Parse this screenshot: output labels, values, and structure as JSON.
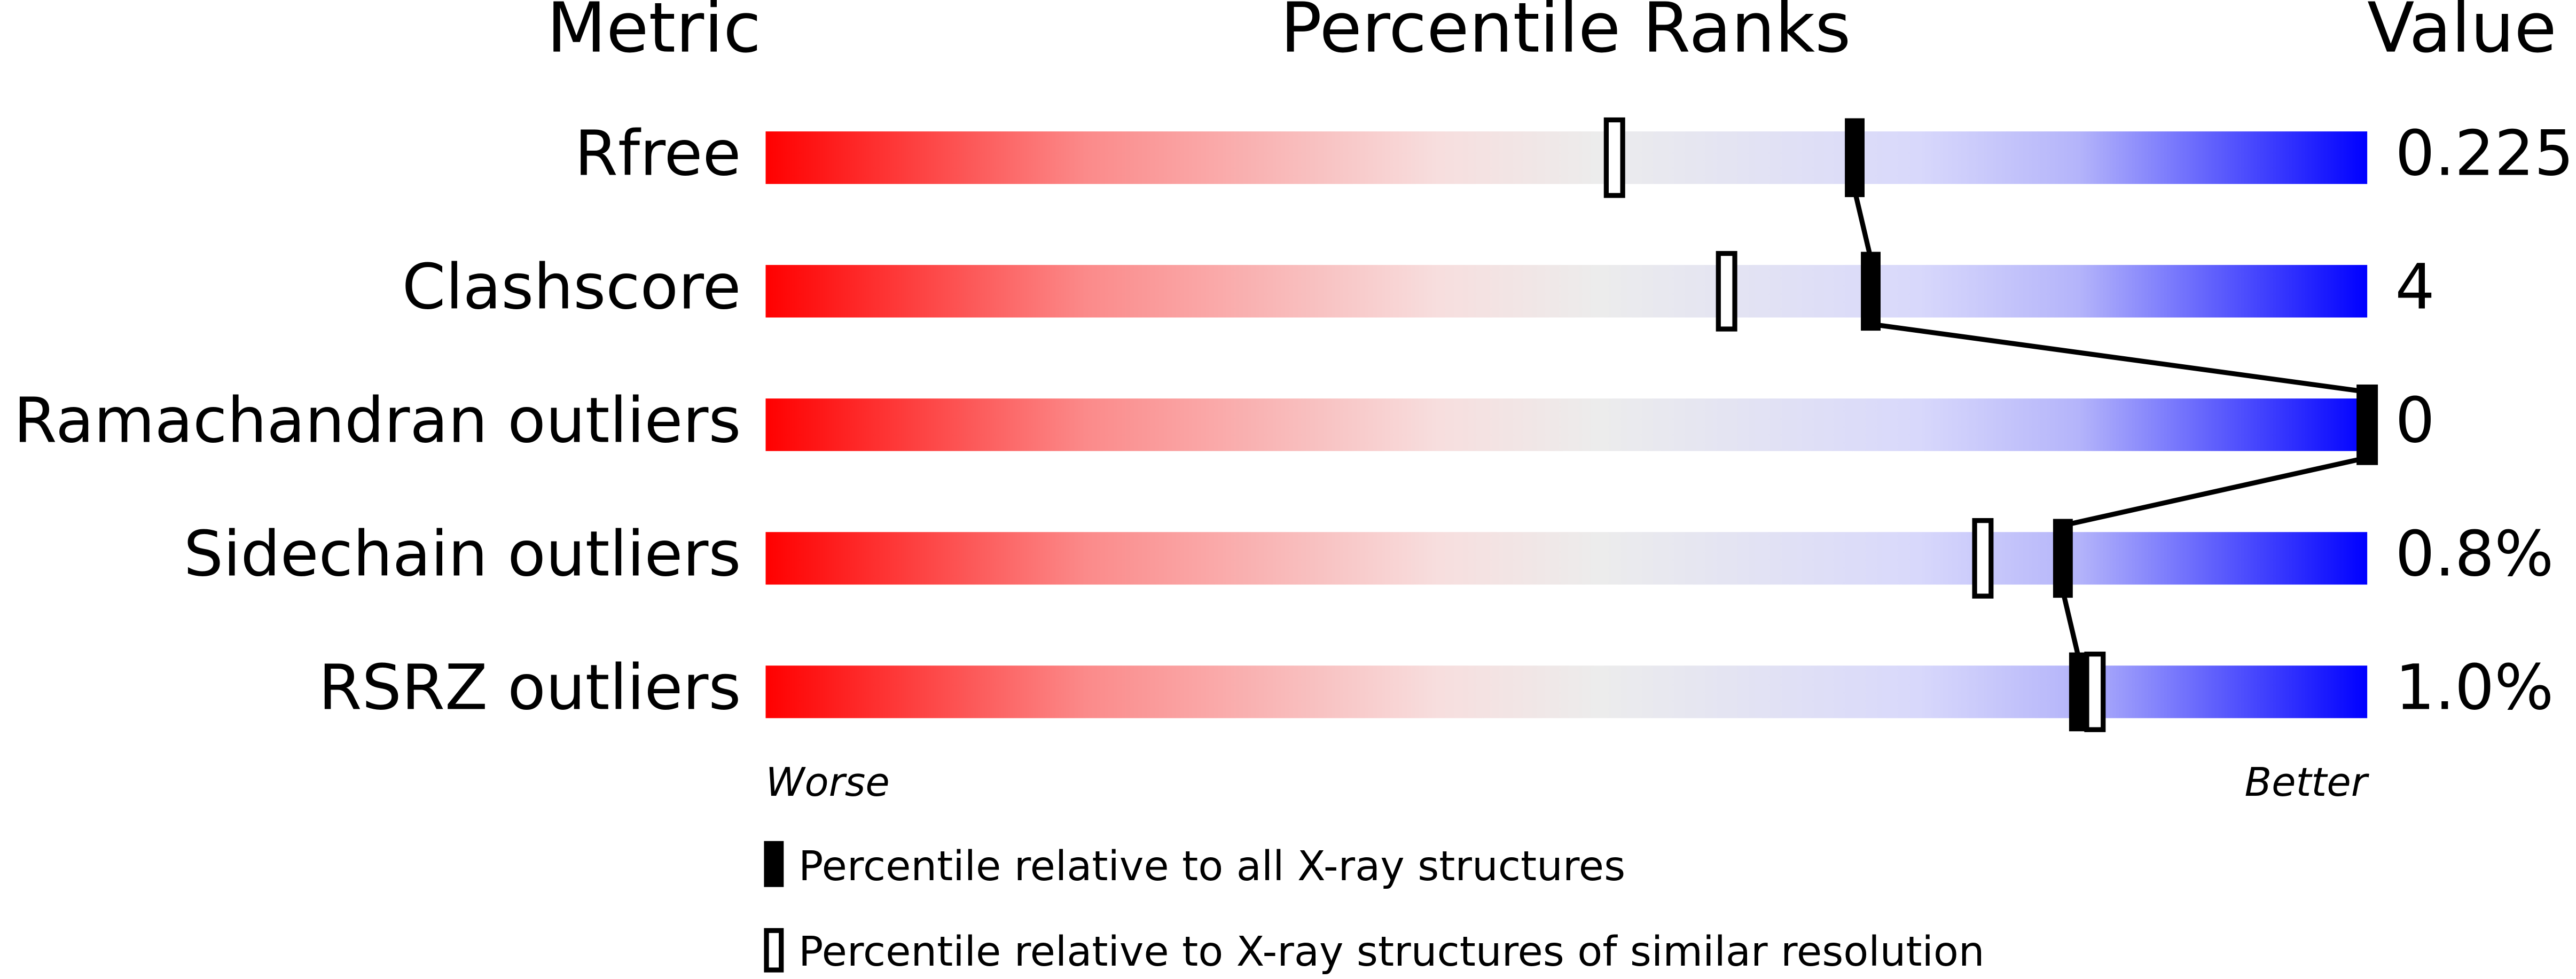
{
  "chart_data": {
    "type": "percentile",
    "headers": [
      "Metric",
      "Percentile Ranks",
      "Value"
    ],
    "categories": [
      "Rfree",
      "Clashscore",
      "Ramachandran outliers",
      "Sidechain outliers",
      "RSRZ outliers"
    ],
    "value_labels": [
      "0.225",
      "4",
      "0",
      "0.8%",
      "1.0%"
    ],
    "series": [
      {
        "name": "Percentile relative to all X-ray structures",
        "color": "#000000",
        "values": [
          68,
          69,
          100,
          81,
          82
        ]
      },
      {
        "name": "Percentile relative to X-ray structures of similar resolution",
        "color": "#000000",
        "values": [
          53,
          60,
          100,
          76,
          83
        ]
      }
    ],
    "xlim": [
      0,
      100
    ],
    "axis_labels": [
      "Worse",
      "Better"
    ]
  }
}
